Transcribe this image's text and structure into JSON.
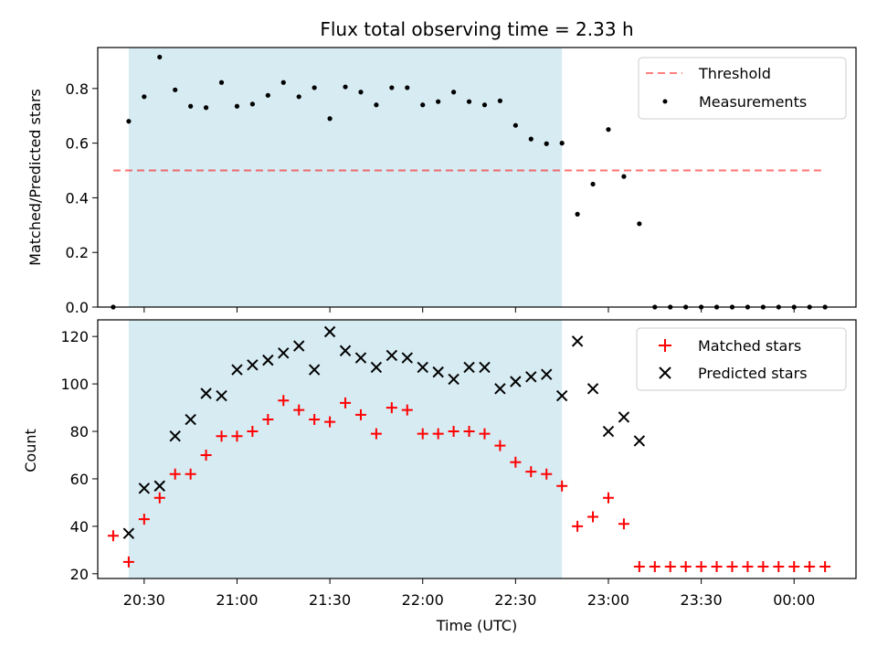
{
  "title": "Flux total observing time = 2.33 h",
  "xlabel": "Time (UTC)",
  "colors": {
    "band": "#add8e6",
    "threshold": "#ff0000",
    "measurement": "#000000",
    "matched": "#ff0000",
    "predicted": "#000000"
  },
  "x_ticks": [
    "20:30",
    "21:00",
    "21:30",
    "22:00",
    "22:30",
    "23:00",
    "23:30",
    "00:00"
  ],
  "chart_data": [
    {
      "type": "scatter",
      "ylabel": "Matched/Predicted stars",
      "ylim": [
        0,
        0.95
      ],
      "y_ticks": [
        "0.0",
        "0.2",
        "0.4",
        "0.6",
        "0.8"
      ],
      "x_range": [
        "20:15",
        "00:20"
      ],
      "observing_window": [
        "20:25",
        "22:45"
      ],
      "threshold": {
        "name": "Threshold",
        "y": 0.5,
        "x_start": "20:20",
        "x_end": "00:10"
      },
      "legend": {
        "position": "top-right",
        "entries": [
          "Threshold",
          "Measurements"
        ]
      },
      "series": [
        {
          "name": "Measurements",
          "marker": "dot",
          "x": [
            "20:20",
            "20:25",
            "20:30",
            "20:35",
            "20:40",
            "20:45",
            "20:50",
            "20:55",
            "21:00",
            "21:05",
            "21:10",
            "21:15",
            "21:20",
            "21:25",
            "21:30",
            "21:35",
            "21:40",
            "21:45",
            "21:50",
            "21:55",
            "22:00",
            "22:05",
            "22:10",
            "22:15",
            "22:20",
            "22:25",
            "22:30",
            "22:35",
            "22:40",
            "22:45",
            "22:50",
            "22:55",
            "23:00",
            "23:05",
            "23:10",
            "23:15",
            "23:20",
            "23:25",
            "23:30",
            "23:35",
            "23:40",
            "23:45",
            "23:50",
            "23:55",
            "00:00",
            "00:05",
            "00:10"
          ],
          "values": [
            0.0,
            0.68,
            0.77,
            0.915,
            0.795,
            0.735,
            0.73,
            0.822,
            0.735,
            0.743,
            0.775,
            0.822,
            0.77,
            0.803,
            0.69,
            0.806,
            0.787,
            0.74,
            0.803,
            0.803,
            0.74,
            0.752,
            0.787,
            0.752,
            0.74,
            0.755,
            0.665,
            0.615,
            0.598,
            0.6,
            0.34,
            0.45,
            0.65,
            0.478,
            0.305,
            0.0,
            0.0,
            0.0,
            0.0,
            0.0,
            0.0,
            0.0,
            0.0,
            0.0,
            0.0,
            0.0,
            0.0
          ]
        }
      ]
    },
    {
      "type": "scatter",
      "ylabel": "Count",
      "ylim": [
        18,
        127
      ],
      "y_ticks": [
        "20",
        "40",
        "60",
        "80",
        "100",
        "120"
      ],
      "x_range": [
        "20:15",
        "00:20"
      ],
      "observing_window": [
        "20:25",
        "22:45"
      ],
      "legend": {
        "position": "top-right",
        "entries": [
          "Matched stars",
          "Predicted stars"
        ]
      },
      "series": [
        {
          "name": "Matched stars",
          "marker": "plus",
          "x": [
            "20:20",
            "20:25",
            "20:30",
            "20:35",
            "20:40",
            "20:45",
            "20:50",
            "20:55",
            "21:00",
            "21:05",
            "21:10",
            "21:15",
            "21:20",
            "21:25",
            "21:30",
            "21:35",
            "21:40",
            "21:45",
            "21:50",
            "21:55",
            "22:00",
            "22:05",
            "22:10",
            "22:15",
            "22:20",
            "22:25",
            "22:30",
            "22:35",
            "22:40",
            "22:45",
            "22:50",
            "22:55",
            "23:00",
            "23:05",
            "23:10",
            "23:15",
            "23:20",
            "23:25",
            "23:30",
            "23:35",
            "23:40",
            "23:45",
            "23:50",
            "23:55",
            "00:00",
            "00:05",
            "00:10"
          ],
          "values": [
            36,
            25,
            43,
            52,
            62,
            62,
            70,
            78,
            78,
            80,
            85,
            93,
            89,
            85,
            84,
            92,
            87,
            79,
            90,
            89,
            79,
            79,
            80,
            80,
            79,
            74,
            67,
            63,
            62,
            57,
            40,
            44,
            52,
            41,
            23,
            23,
            23,
            23,
            23,
            23,
            23,
            23,
            23,
            23,
            23,
            23,
            23
          ]
        },
        {
          "name": "Predicted stars",
          "marker": "x",
          "x": [
            "20:25",
            "20:30",
            "20:35",
            "20:40",
            "20:45",
            "20:50",
            "20:55",
            "21:00",
            "21:05",
            "21:10",
            "21:15",
            "21:20",
            "21:25",
            "21:30",
            "21:35",
            "21:40",
            "21:45",
            "21:50",
            "21:55",
            "22:00",
            "22:05",
            "22:10",
            "22:15",
            "22:20",
            "22:25",
            "22:30",
            "22:35",
            "22:40",
            "22:45",
            "22:50",
            "22:55",
            "23:00",
            "23:05",
            "23:10"
          ],
          "values": [
            37,
            56,
            57,
            78,
            85,
            96,
            95,
            106,
            108,
            110,
            113,
            116,
            106,
            122,
            114,
            111,
            107,
            112,
            111,
            107,
            105,
            102,
            107,
            107,
            98,
            101,
            103,
            104,
            95,
            118,
            98,
            80,
            86,
            76
          ]
        }
      ]
    }
  ]
}
